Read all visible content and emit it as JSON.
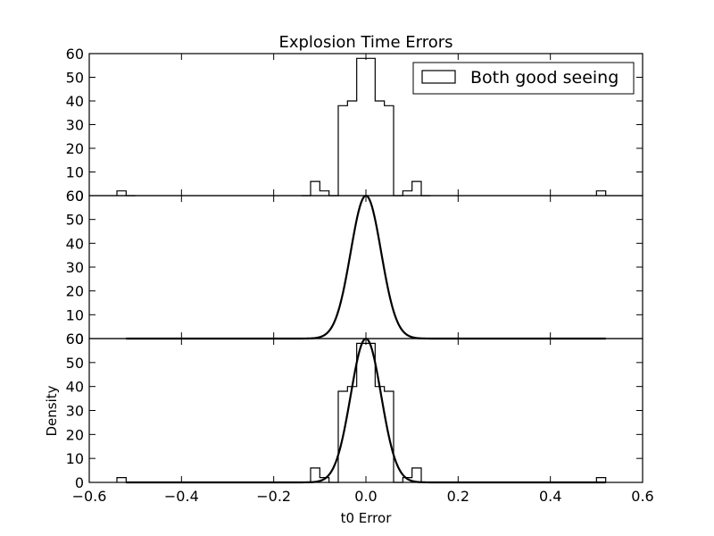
{
  "chart_data": {
    "type": "histogram+line",
    "title": "Explosion Time Errors",
    "xlabel": "t0 Error",
    "ylabel": "Density",
    "xlim": [
      -0.6,
      0.6
    ],
    "ylim": [
      0,
      60
    ],
    "xticks": [
      -0.6,
      -0.4,
      -0.2,
      0.0,
      0.2,
      0.4,
      0.6
    ],
    "xtick_labels": [
      "−0.6",
      "−0.4",
      "−0.2",
      "0.0",
      "0.2",
      "0.4",
      "0.6"
    ],
    "yticks": [
      0,
      10,
      20,
      30,
      40,
      50,
      60
    ],
    "ytick_labels": [
      "0",
      "10",
      "20",
      "30",
      "40",
      "50",
      "60"
    ],
    "grid": false,
    "histogram": {
      "name": "Both good seeing",
      "bin_width": 0.02,
      "bins": [
        {
          "x0": -0.54,
          "x1": -0.52,
          "y": 2
        },
        {
          "x0": -0.52,
          "x1": -0.5,
          "y": 0
        },
        {
          "x0": -0.14,
          "x1": -0.12,
          "y": 0
        },
        {
          "x0": -0.12,
          "x1": -0.1,
          "y": 6
        },
        {
          "x0": -0.1,
          "x1": -0.08,
          "y": 2
        },
        {
          "x0": -0.08,
          "x1": -0.06,
          "y": 0
        },
        {
          "x0": -0.06,
          "x1": -0.04,
          "y": 38
        },
        {
          "x0": -0.04,
          "x1": -0.02,
          "y": 40
        },
        {
          "x0": -0.02,
          "x1": 0.0,
          "y": 58
        },
        {
          "x0": 0.0,
          "x1": 0.02,
          "y": 58
        },
        {
          "x0": 0.02,
          "x1": 0.04,
          "y": 40
        },
        {
          "x0": 0.04,
          "x1": 0.06,
          "y": 38
        },
        {
          "x0": 0.06,
          "x1": 0.08,
          "y": 0
        },
        {
          "x0": 0.08,
          "x1": 0.1,
          "y": 2
        },
        {
          "x0": 0.1,
          "x1": 0.12,
          "y": 6
        },
        {
          "x0": 0.12,
          "x1": 0.14,
          "y": 0
        },
        {
          "x0": 0.5,
          "x1": 0.52,
          "y": 2
        }
      ]
    },
    "gaussian_fit": {
      "mean": 0.0,
      "sigma": 0.033,
      "peak": 60,
      "x_range": [
        -0.52,
        0.52
      ]
    },
    "panels": [
      {
        "id": "top",
        "shows": [
          "histogram"
        ],
        "legend": true
      },
      {
        "id": "middle",
        "shows": [
          "gaussian_fit"
        ],
        "legend": false
      },
      {
        "id": "bottom",
        "shows": [
          "histogram",
          "gaussian_fit"
        ],
        "legend": false
      }
    ],
    "legend": {
      "placement": "top-right",
      "entries": [
        "Both good seeing"
      ]
    },
    "colors": {
      "line": "#000000",
      "background": "#ffffff"
    }
  }
}
